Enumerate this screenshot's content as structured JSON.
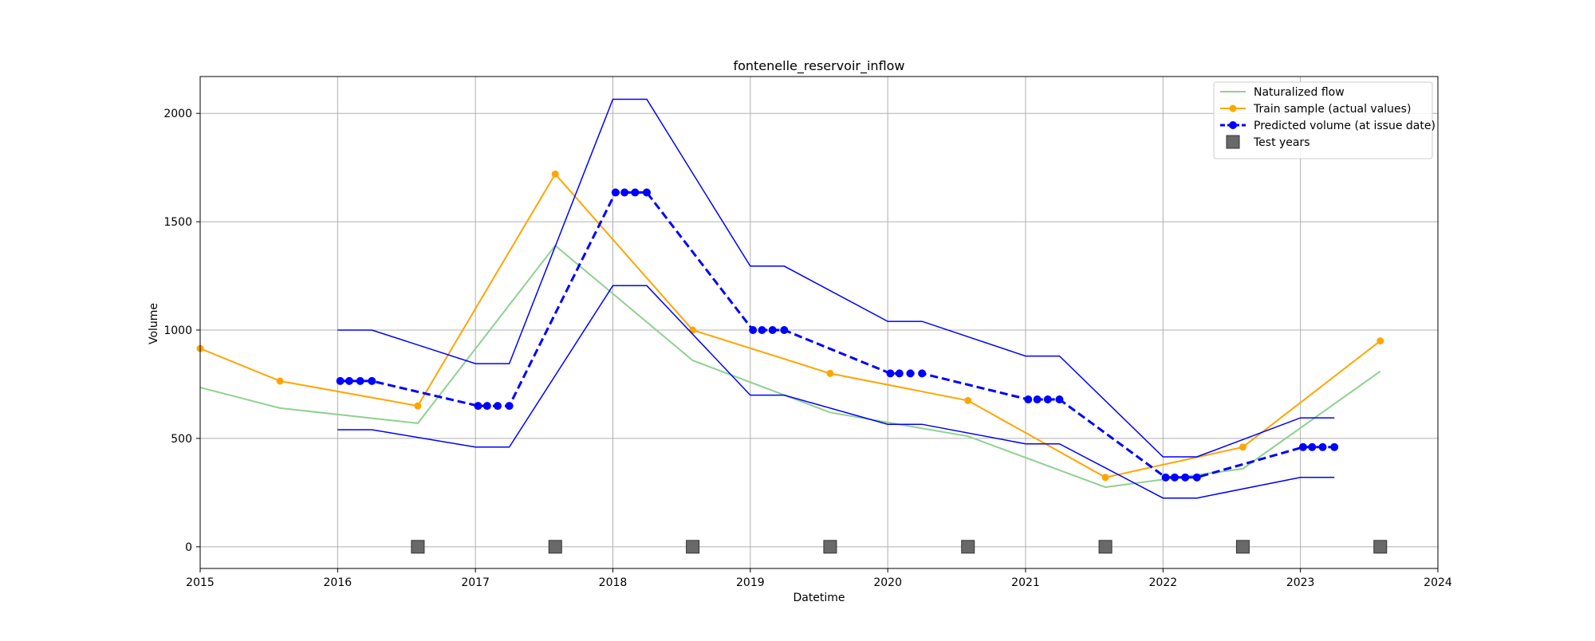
{
  "chart_data": {
    "type": "line",
    "title": "fontenelle_reservoir_inflow",
    "xlabel": "Datetime",
    "ylabel": "Volume",
    "xlim": [
      "2015-01-01",
      "2024-01-01"
    ],
    "ylim": [
      -100,
      2170
    ],
    "x_ticks": [
      "2015",
      "2016",
      "2017",
      "2018",
      "2019",
      "2020",
      "2021",
      "2022",
      "2023",
      "2024"
    ],
    "y_ticks": [
      0,
      500,
      1000,
      1500,
      2000
    ],
    "grid": true,
    "legend_position": "top-right",
    "series": [
      {
        "name": "Naturalized flow",
        "color": "#90d090",
        "style": "line",
        "points": [
          [
            "2015-01-01",
            735
          ],
          [
            "2015-08-01",
            640
          ],
          [
            "2016-08-01",
            570
          ],
          [
            "2017-08-01",
            1390
          ],
          [
            "2018-08-01",
            860
          ],
          [
            "2019-08-01",
            620
          ],
          [
            "2020-08-01",
            510
          ],
          [
            "2021-08-01",
            275
          ],
          [
            "2022-08-01",
            360
          ],
          [
            "2023-08-01",
            810
          ]
        ]
      },
      {
        "name": "Train sample (actual values)",
        "color": "#ffa500",
        "style": "line-markers",
        "points": [
          [
            "2015-01-01",
            915
          ],
          [
            "2015-08-01",
            765
          ],
          [
            "2016-08-01",
            650
          ],
          [
            "2017-08-01",
            1720
          ],
          [
            "2018-08-01",
            1000
          ],
          [
            "2019-08-01",
            800
          ],
          [
            "2020-08-01",
            675
          ],
          [
            "2021-08-01",
            320
          ],
          [
            "2022-08-01",
            460
          ],
          [
            "2023-08-01",
            950
          ]
        ]
      },
      {
        "name": "Predicted volume (at issue date)",
        "color": "#0000ff",
        "style": "dashed-markers",
        "points": [
          [
            "2016-01-08",
            765
          ],
          [
            "2016-02-01",
            765
          ],
          [
            "2016-03-01",
            765
          ],
          [
            "2016-04-01",
            765
          ],
          [
            "2017-01-08",
            650
          ],
          [
            "2017-02-01",
            650
          ],
          [
            "2017-03-01",
            650
          ],
          [
            "2017-04-01",
            650
          ],
          [
            "2018-01-08",
            1635
          ],
          [
            "2018-02-01",
            1635
          ],
          [
            "2018-03-01",
            1635
          ],
          [
            "2018-04-01",
            1635
          ],
          [
            "2019-01-08",
            1000
          ],
          [
            "2019-02-01",
            1000
          ],
          [
            "2019-03-01",
            1000
          ],
          [
            "2019-04-01",
            1000
          ],
          [
            "2020-01-08",
            800
          ],
          [
            "2020-02-01",
            800
          ],
          [
            "2020-03-01",
            800
          ],
          [
            "2020-04-01",
            800
          ],
          [
            "2021-01-08",
            680
          ],
          [
            "2021-02-01",
            680
          ],
          [
            "2021-03-01",
            680
          ],
          [
            "2021-04-01",
            680
          ],
          [
            "2022-01-08",
            320
          ],
          [
            "2022-02-01",
            320
          ],
          [
            "2022-03-01",
            320
          ],
          [
            "2022-04-01",
            320
          ],
          [
            "2023-01-08",
            460
          ],
          [
            "2023-02-01",
            460
          ],
          [
            "2023-03-01",
            460
          ],
          [
            "2023-04-01",
            460
          ]
        ]
      },
      {
        "name": "",
        "color": "#0000ff",
        "style": "thin-line",
        "points": [
          [
            "2016-01-01",
            1000
          ],
          [
            "2016-04-01",
            1000
          ],
          [
            "2017-01-01",
            845
          ],
          [
            "2017-04-01",
            845
          ],
          [
            "2018-01-01",
            2065
          ],
          [
            "2018-04-01",
            2065
          ],
          [
            "2019-01-01",
            1295
          ],
          [
            "2019-04-01",
            1295
          ],
          [
            "2020-01-01",
            1040
          ],
          [
            "2020-04-01",
            1040
          ],
          [
            "2021-01-01",
            880
          ],
          [
            "2021-04-01",
            880
          ],
          [
            "2022-01-01",
            415
          ],
          [
            "2022-04-01",
            415
          ],
          [
            "2023-01-01",
            595
          ],
          [
            "2023-04-01",
            595
          ]
        ]
      },
      {
        "name": "",
        "color": "#0000ff",
        "style": "thin-line",
        "points": [
          [
            "2016-01-01",
            540
          ],
          [
            "2016-04-01",
            540
          ],
          [
            "2017-01-01",
            460
          ],
          [
            "2017-04-01",
            460
          ],
          [
            "2018-01-01",
            1205
          ],
          [
            "2018-04-01",
            1205
          ],
          [
            "2019-01-01",
            700
          ],
          [
            "2019-04-01",
            700
          ],
          [
            "2020-01-01",
            565
          ],
          [
            "2020-04-01",
            565
          ],
          [
            "2021-01-01",
            475
          ],
          [
            "2021-04-01",
            475
          ],
          [
            "2022-01-01",
            225
          ],
          [
            "2022-04-01",
            225
          ],
          [
            "2023-01-01",
            320
          ],
          [
            "2023-04-01",
            320
          ]
        ]
      },
      {
        "name": "Test years",
        "color": "#696969",
        "style": "square-markers",
        "points": [
          [
            "2016-08-01",
            0
          ],
          [
            "2017-08-01",
            0
          ],
          [
            "2018-08-01",
            0
          ],
          [
            "2019-08-01",
            0
          ],
          [
            "2020-08-01",
            0
          ],
          [
            "2021-08-01",
            0
          ],
          [
            "2022-08-01",
            0
          ],
          [
            "2023-08-01",
            0
          ]
        ]
      }
    ]
  }
}
